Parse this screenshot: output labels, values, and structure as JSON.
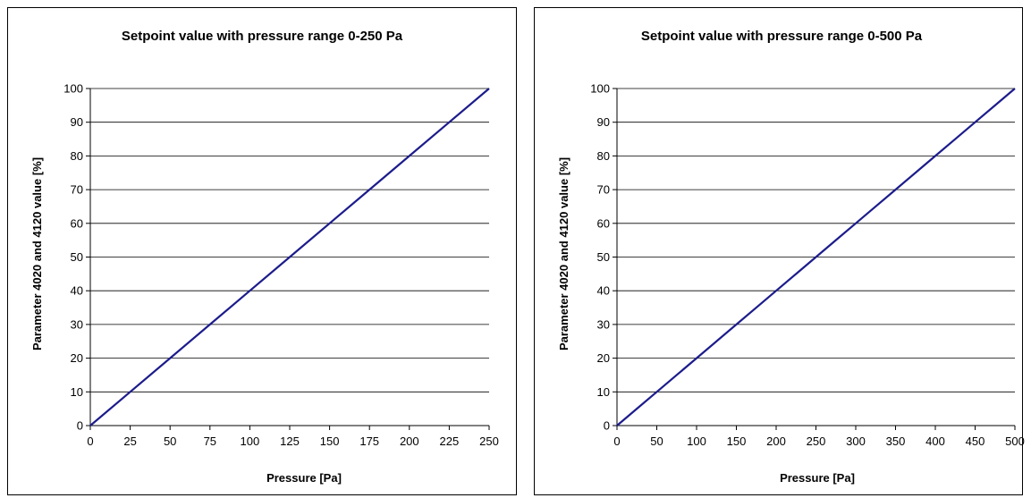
{
  "colors": {
    "line": "#1c1c8c",
    "grid": "#000000",
    "axis": "#000000"
  },
  "chart_data": [
    {
      "type": "line",
      "title": "Setpoint value with pressure range 0-250 Pa",
      "xlabel": "Pressure [Pa]",
      "ylabel": "Parameter 4020 and 4120 value [%]",
      "xlim": [
        0,
        250
      ],
      "ylim": [
        0,
        100
      ],
      "xticks": [
        "0",
        "25",
        "50",
        "75",
        "100",
        "125",
        "150",
        "175",
        "200",
        "225",
        "250"
      ],
      "yticks": [
        "0",
        "10",
        "20",
        "30",
        "40",
        "50",
        "60",
        "70",
        "80",
        "90",
        "100"
      ],
      "grid": "horizontal",
      "series": [
        {
          "x": [
            0,
            25,
            50,
            75,
            100,
            125,
            150,
            175,
            200,
            225,
            250
          ],
          "y": [
            0,
            10,
            20,
            30,
            40,
            50,
            60,
            70,
            80,
            90,
            100
          ]
        }
      ]
    },
    {
      "type": "line",
      "title": "Setpoint value with pressure range 0-500 Pa",
      "xlabel": "Pressure [Pa]",
      "ylabel": "Parameter 4020 and 4120 value [%]",
      "xlim": [
        0,
        500
      ],
      "ylim": [
        0,
        100
      ],
      "xticks": [
        "0",
        "50",
        "100",
        "150",
        "200",
        "250",
        "300",
        "350",
        "400",
        "450",
        "500"
      ],
      "yticks": [
        "0",
        "10",
        "20",
        "30",
        "40",
        "50",
        "60",
        "70",
        "80",
        "90",
        "100"
      ],
      "grid": "horizontal",
      "series": [
        {
          "x": [
            0,
            25,
            50,
            75,
            100,
            125,
            150,
            175,
            200,
            225,
            250,
            275,
            300,
            325,
            350,
            375,
            400,
            425,
            450,
            475,
            500
          ],
          "y": [
            0,
            5,
            10,
            15,
            20,
            25,
            30,
            35,
            40,
            45,
            50,
            55,
            60,
            65,
            70,
            75,
            80,
            85,
            90,
            95,
            100
          ]
        }
      ]
    }
  ]
}
